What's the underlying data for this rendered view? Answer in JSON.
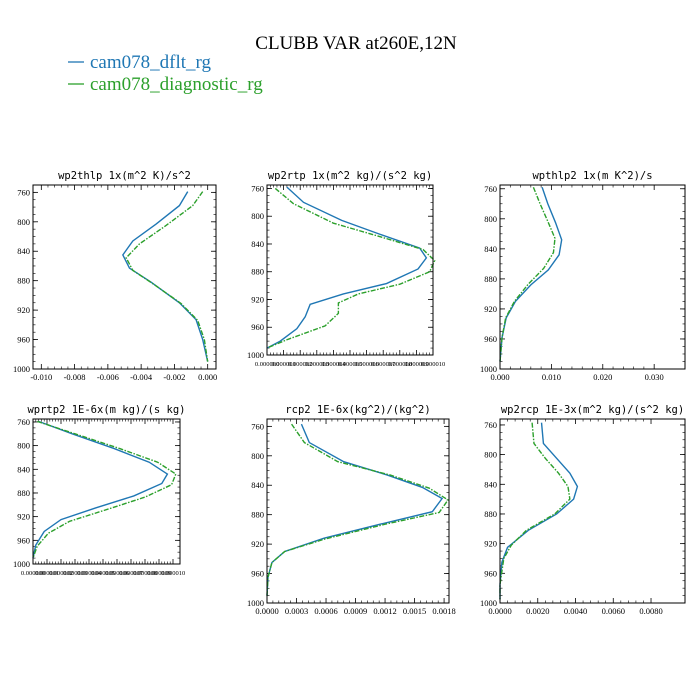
{
  "figure": {
    "title": "CLUBB VAR at260E,12N",
    "legend": [
      {
        "label": "cam078_dflt_rg",
        "color": "#1f77b4",
        "dash": false
      },
      {
        "label": "cam078_diagnostic_rg",
        "color": "#2ca02c",
        "dash": true
      }
    ]
  },
  "chart_data": [
    {
      "type": "line",
      "title": "wp2thlp  1x(m^2 K)/s^2",
      "xlim": [
        -0.0105,
        0.0005
      ],
      "ylim": [
        1000,
        750
      ],
      "xticks": [
        -0.01,
        -0.008,
        -0.006,
        -0.004,
        -0.002,
        0.0
      ],
      "xtick_labels": [
        "-0.010",
        "-0.008",
        "-0.006",
        "-0.004",
        "-0.002",
        "0.000"
      ],
      "yticks": [
        760,
        800,
        840,
        880,
        920,
        960,
        1000
      ],
      "ytick_labels": [
        "760",
        "800",
        "840",
        "880",
        "920",
        "960",
        "1000"
      ],
      "series": [
        {
          "name": "cam078_dflt_rg",
          "color": "#1f77b4",
          "dash": false,
          "points": [
            [
              -0.0012,
              759
            ],
            [
              -0.0017,
              778
            ],
            [
              -0.0031,
              803
            ],
            [
              -0.0045,
              826
            ],
            [
              -0.0051,
              845
            ],
            [
              -0.0047,
              863
            ],
            [
              -0.0034,
              882
            ],
            [
              -0.0017,
              910
            ],
            [
              -0.0007,
              933
            ],
            [
              -0.0003,
              960
            ],
            [
              0.0,
              990
            ]
          ]
        },
        {
          "name": "cam078_diagnostic_rg",
          "color": "#2ca02c",
          "dash": true,
          "points": [
            [
              -0.0003,
              759
            ],
            [
              -0.0009,
              778
            ],
            [
              -0.0025,
              805
            ],
            [
              -0.0041,
              830
            ],
            [
              -0.0049,
              849
            ],
            [
              -0.0045,
              866
            ],
            [
              -0.0033,
              884
            ],
            [
              -0.0016,
              911
            ],
            [
              -0.0006,
              934
            ],
            [
              -0.0002,
              960
            ],
            [
              0.0,
              990
            ]
          ]
        }
      ]
    },
    {
      "type": "line",
      "title": "wp2rtp  1x(m^2 kg)/(s^2 kg)",
      "xlim": [
        0.0,
        1e-05
      ],
      "ylim": [
        1000,
        755
      ],
      "xticks": [
        0.0,
        1e-06,
        2e-06,
        3e-06,
        4e-06,
        5e-06,
        6e-06,
        7e-06,
        8e-06,
        9e-06,
        1e-05
      ],
      "xtick_labels": [
        "0.000000",
        "0.000001",
        "0.000002",
        "0.000003",
        "0.000004",
        "0.000005",
        "0.000006",
        "0.000007",
        "0.000008",
        "0.000009",
        "0.000010"
      ],
      "yticks": [
        760,
        800,
        840,
        880,
        920,
        960,
        1000
      ],
      "ytick_labels": [
        "760",
        "800",
        "840",
        "880",
        "920",
        "960",
        "1000"
      ],
      "series": [
        {
          "name": "cam078_dflt_rg",
          "color": "#1f77b4",
          "dash": false,
          "points": [
            [
              1.2e-06,
              758
            ],
            [
              2.2e-06,
              780
            ],
            [
              4.5e-06,
              806
            ],
            [
              6.8e-06,
              826
            ],
            [
              9.2e-06,
              846
            ],
            [
              9.6e-06,
              860
            ],
            [
              9.1e-06,
              876
            ],
            [
              7.2e-06,
              897
            ],
            [
              4.6e-06,
              912
            ],
            [
              2.6e-06,
              927
            ],
            [
              2.3e-06,
              945
            ],
            [
              1.8e-06,
              962
            ],
            [
              8e-07,
              980
            ],
            [
              0.0,
              990
            ]
          ]
        },
        {
          "name": "cam078_diagnostic_rg",
          "color": "#2ca02c",
          "dash": true,
          "points": [
            [
              5e-07,
              760
            ],
            [
              1.6e-06,
              782
            ],
            [
              4e-06,
              810
            ],
            [
              6.6e-06,
              828
            ],
            [
              9.4e-06,
              848
            ],
            [
              1.01e-05,
              864
            ],
            [
              9.8e-06,
              880
            ],
            [
              8e-06,
              898
            ],
            [
              5.5e-06,
              912
            ],
            [
              4.3e-06,
              925
            ],
            [
              4.3e-06,
              940
            ],
            [
              3.5e-06,
              958
            ],
            [
              1.2e-06,
              978
            ],
            [
              0.0,
              990
            ]
          ]
        }
      ]
    },
    {
      "type": "line",
      "title": "wpthlp2  1x(m K^2)/s",
      "xlim": [
        0.0,
        0.036
      ],
      "ylim": [
        1000,
        755
      ],
      "xticks": [
        0.0,
        0.01,
        0.02,
        0.03
      ],
      "xtick_labels": [
        "0.000",
        "0.010",
        "0.020",
        "0.030"
      ],
      "yticks": [
        760,
        800,
        840,
        880,
        920,
        960,
        1000
      ],
      "ytick_labels": [
        "760",
        "800",
        "840",
        "880",
        "920",
        "960",
        "1000"
      ],
      "series": [
        {
          "name": "cam078_dflt_rg",
          "color": "#1f77b4",
          "dash": false,
          "points": [
            [
              0.0082,
              758
            ],
            [
              0.0093,
              780
            ],
            [
              0.0108,
              805
            ],
            [
              0.012,
              828
            ],
            [
              0.0115,
              848
            ],
            [
              0.0094,
              868
            ],
            [
              0.006,
              888
            ],
            [
              0.003,
              910
            ],
            [
              0.0012,
              932
            ],
            [
              0.0004,
              958
            ],
            [
              0.0,
              990
            ]
          ]
        },
        {
          "name": "cam078_diagnostic_rg",
          "color": "#2ca02c",
          "dash": true,
          "points": [
            [
              0.0065,
              758
            ],
            [
              0.0078,
              780
            ],
            [
              0.0094,
              805
            ],
            [
              0.0107,
              826
            ],
            [
              0.0104,
              845
            ],
            [
              0.0085,
              866
            ],
            [
              0.0055,
              887
            ],
            [
              0.0028,
              910
            ],
            [
              0.0011,
              932
            ],
            [
              0.0004,
              958
            ],
            [
              0.0,
              990
            ]
          ]
        }
      ]
    },
    {
      "type": "line",
      "title": "wprtp2  1E-6x(m kg)/(s kg)",
      "xlim": [
        0.0,
        1.05e-05
      ],
      "ylim": [
        1000,
        755
      ],
      "xticks": [
        0.0,
        1e-06,
        2e-06,
        3e-06,
        4e-06,
        5e-06,
        6e-06,
        7e-06,
        8e-06,
        9e-06,
        1e-05
      ],
      "xtick_labels": [
        "0.000000",
        "0.000001",
        "0.000002",
        "0.000003",
        "0.000004",
        "0.000005",
        "0.000006",
        "0.000007",
        "0.000008",
        "0.000009",
        "0.000010"
      ],
      "yticks": [
        760,
        800,
        840,
        880,
        920,
        960,
        1000
      ],
      "ytick_labels": [
        "760",
        "800",
        "840",
        "880",
        "920",
        "960",
        "1000"
      ],
      "series": [
        {
          "name": "cam078_dflt_rg",
          "color": "#1f77b4",
          "dash": false,
          "points": [
            [
              4e-07,
              759
            ],
            [
              2.8e-06,
              780
            ],
            [
              5.8e-06,
              805
            ],
            [
              8.3e-06,
              828
            ],
            [
              9.6e-06,
              848
            ],
            [
              9.2e-06,
              864
            ],
            [
              7.2e-06,
              885
            ],
            [
              4.5e-06,
              905
            ],
            [
              2e-06,
              925
            ],
            [
              8e-07,
              945
            ],
            [
              2e-07,
              968
            ],
            [
              0.0,
              990
            ]
          ]
        },
        {
          "name": "cam078_diagnostic_rg",
          "color": "#2ca02c",
          "dash": true,
          "points": [
            [
              3e-07,
              759
            ],
            [
              3e-06,
              780
            ],
            [
              6.2e-06,
              805
            ],
            [
              8.9e-06,
              828
            ],
            [
              1.02e-05,
              848
            ],
            [
              9.9e-06,
              866
            ],
            [
              8e-06,
              887
            ],
            [
              5.4e-06,
              907
            ],
            [
              2.6e-06,
              928
            ],
            [
              1.1e-06,
              948
            ],
            [
              3e-07,
              970
            ],
            [
              0.0,
              990
            ]
          ]
        }
      ]
    },
    {
      "type": "line",
      "title": "rcp2  1E-6x(kg^2)/(kg^2)",
      "xlim": [
        0.0,
        0.00185
      ],
      "ylim": [
        1000,
        750
      ],
      "xticks": [
        0.0,
        0.0003,
        0.0006,
        0.0009,
        0.0012,
        0.0015,
        0.0018
      ],
      "xtick_labels": [
        "0.0000",
        "0.0003",
        "0.0006",
        "0.0009",
        "0.0012",
        "0.0015",
        "0.0018"
      ],
      "yticks": [
        760,
        800,
        840,
        880,
        920,
        960,
        1000
      ],
      "ytick_labels": [
        "760",
        "800",
        "840",
        "880",
        "920",
        "960",
        "1000"
      ],
      "series": [
        {
          "name": "cam078_dflt_rg",
          "color": "#1f77b4",
          "dash": false,
          "points": [
            [
              0.00035,
              757
            ],
            [
              0.00043,
              782
            ],
            [
              0.00078,
              808
            ],
            [
              0.00122,
              826
            ],
            [
              0.00158,
              843
            ],
            [
              0.00178,
              858
            ],
            [
              0.00168,
              876
            ],
            [
              0.00118,
              892
            ],
            [
              0.00058,
              912
            ],
            [
              0.00018,
              930
            ],
            [
              5e-05,
              945
            ],
            [
              1e-05,
              965
            ],
            [
              0.0,
              990
            ]
          ]
        },
        {
          "name": "cam078_diagnostic_rg",
          "color": "#2ca02c",
          "dash": true,
          "points": [
            [
              0.00025,
              757
            ],
            [
              0.00038,
              782
            ],
            [
              0.00072,
              808
            ],
            [
              0.00125,
              826
            ],
            [
              0.00165,
              844
            ],
            [
              0.00184,
              860
            ],
            [
              0.00175,
              877
            ],
            [
              0.0012,
              893
            ],
            [
              0.00059,
              913
            ],
            [
              0.00018,
              930
            ],
            [
              5e-05,
              945
            ],
            [
              1e-05,
              965
            ],
            [
              0.0,
              990
            ]
          ]
        }
      ]
    },
    {
      "type": "line",
      "title": "wp2rcp  1E-3x(m^2 kg)/(s^2 kg)",
      "xlim": [
        0.0,
        0.0098
      ],
      "ylim": [
        1000,
        752
      ],
      "xticks": [
        0.0,
        0.002,
        0.004,
        0.006,
        0.008
      ],
      "xtick_labels": [
        "0.0000",
        "0.0020",
        "0.0040",
        "0.0060",
        "0.0080"
      ],
      "yticks": [
        760,
        800,
        840,
        880,
        920,
        960,
        1000
      ],
      "ytick_labels": [
        "760",
        "800",
        "840",
        "880",
        "920",
        "960",
        "1000"
      ],
      "series": [
        {
          "name": "cam078_dflt_rg",
          "color": "#1f77b4",
          "dash": false,
          "points": [
            [
              0.0022,
              757
            ],
            [
              0.0023,
              785
            ],
            [
              0.003,
              805
            ],
            [
              0.0037,
              825
            ],
            [
              0.0041,
              843
            ],
            [
              0.0039,
              860
            ],
            [
              0.003,
              880
            ],
            [
              0.0015,
              902
            ],
            [
              0.0004,
              925
            ],
            [
              0.0001,
              945
            ],
            [
              0.0,
              975
            ],
            [
              0.0,
              995
            ]
          ]
        },
        {
          "name": "cam078_diagnostic_rg",
          "color": "#2ca02c",
          "dash": true,
          "points": [
            [
              0.0017,
              757
            ],
            [
              0.0018,
              785
            ],
            [
              0.0024,
              805
            ],
            [
              0.0031,
              825
            ],
            [
              0.0036,
              843
            ],
            [
              0.0037,
              860
            ],
            [
              0.0029,
              880
            ],
            [
              0.0014,
              902
            ],
            [
              0.0006,
              922
            ],
            [
              0.0002,
              940
            ],
            [
              0.0,
              975
            ],
            [
              0.0,
              995
            ]
          ]
        }
      ]
    }
  ]
}
